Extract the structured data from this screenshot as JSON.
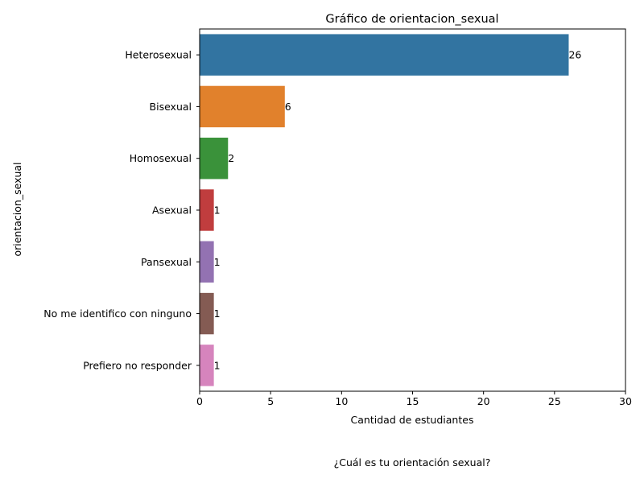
{
  "chart_data": {
    "type": "bar",
    "orientation": "horizontal",
    "title": "Gráfico de orientacion_sexual",
    "xlabel": "Cantidad de estudiantes",
    "ylabel": "orientacion_sexual",
    "xlim": [
      0,
      30
    ],
    "xticks": [
      0,
      5,
      10,
      15,
      20,
      25,
      30
    ],
    "categories": [
      "Heterosexual",
      "Bisexual",
      "Homosexual",
      "Asexual",
      "Pansexual",
      "No me identifico con ninguno",
      "Prefiero no responder"
    ],
    "values": [
      26,
      6,
      2,
      1,
      1,
      1,
      1
    ],
    "colors": [
      "#3274a1",
      "#e1812c",
      "#3a923a",
      "#c03d3e",
      "#9372b2",
      "#845b53",
      "#d684bd"
    ],
    "data_labels": true,
    "grid": false,
    "legend": "none"
  },
  "caption": "¿Cuál es tu orientación sexual?"
}
